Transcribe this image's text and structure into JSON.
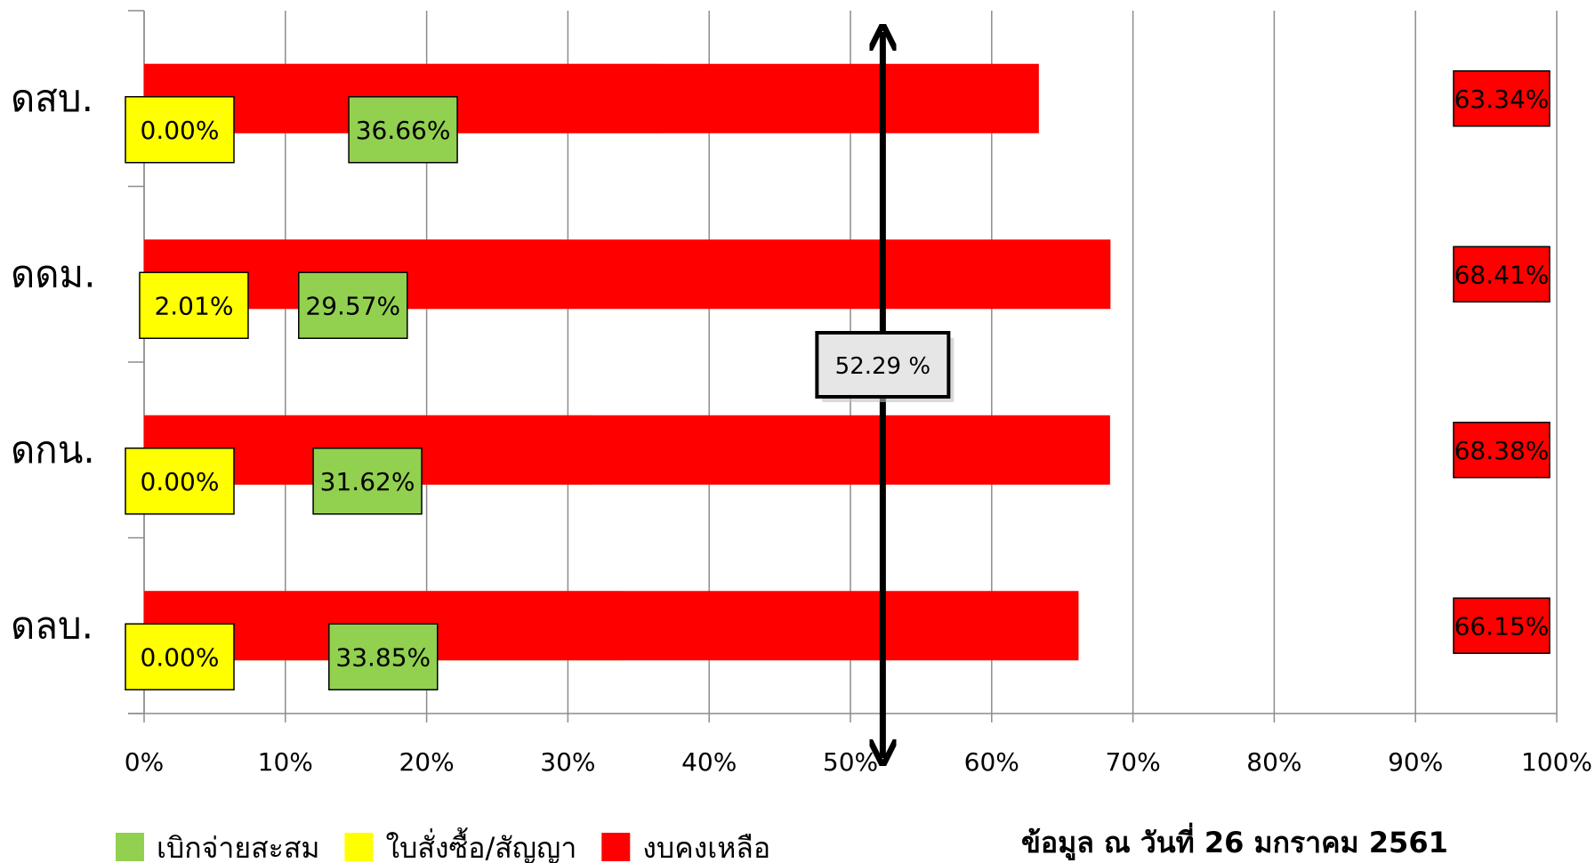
{
  "chart_data": {
    "type": "bar",
    "orientation": "horizontal",
    "stacked": "percent",
    "categories": [
      "ดสบ.",
      "ดดม.",
      "ดกน.",
      "ดลบ."
    ],
    "series": [
      {
        "name": "เบิกจ่ายสะสม",
        "color": "#92d050",
        "values": [
          36.66,
          29.57,
          31.62,
          33.85
        ],
        "labels": [
          "36.66%",
          "29.57%",
          "31.62%",
          "33.85%"
        ]
      },
      {
        "name": "ใบสั่งซื้อ/สัญญา",
        "color": "#ffff00",
        "values": [
          0.0,
          2.01,
          0.0,
          0.0
        ],
        "labels": [
          "0.00%",
          "2.01%",
          "0.00%",
          "0.00%"
        ]
      },
      {
        "name": "งบคงเหลือ",
        "color": "#ff0000",
        "values": [
          63.34,
          68.41,
          68.38,
          66.15
        ],
        "labels": [
          "63.34%",
          "68.41%",
          "68.38%",
          "66.15%"
        ]
      }
    ],
    "xlim": [
      0,
      100
    ],
    "x_ticks": [
      "0%",
      "10%",
      "20%",
      "30%",
      "40%",
      "50%",
      "60%",
      "70%",
      "80%",
      "90%",
      "100%"
    ],
    "grid": true,
    "legend_position": "bottom-left",
    "reference_line": {
      "value": 52.29,
      "label": "52.29 %"
    },
    "note": "ข้อมูล ณ วันที่ 26 มกราคม 2561"
  }
}
